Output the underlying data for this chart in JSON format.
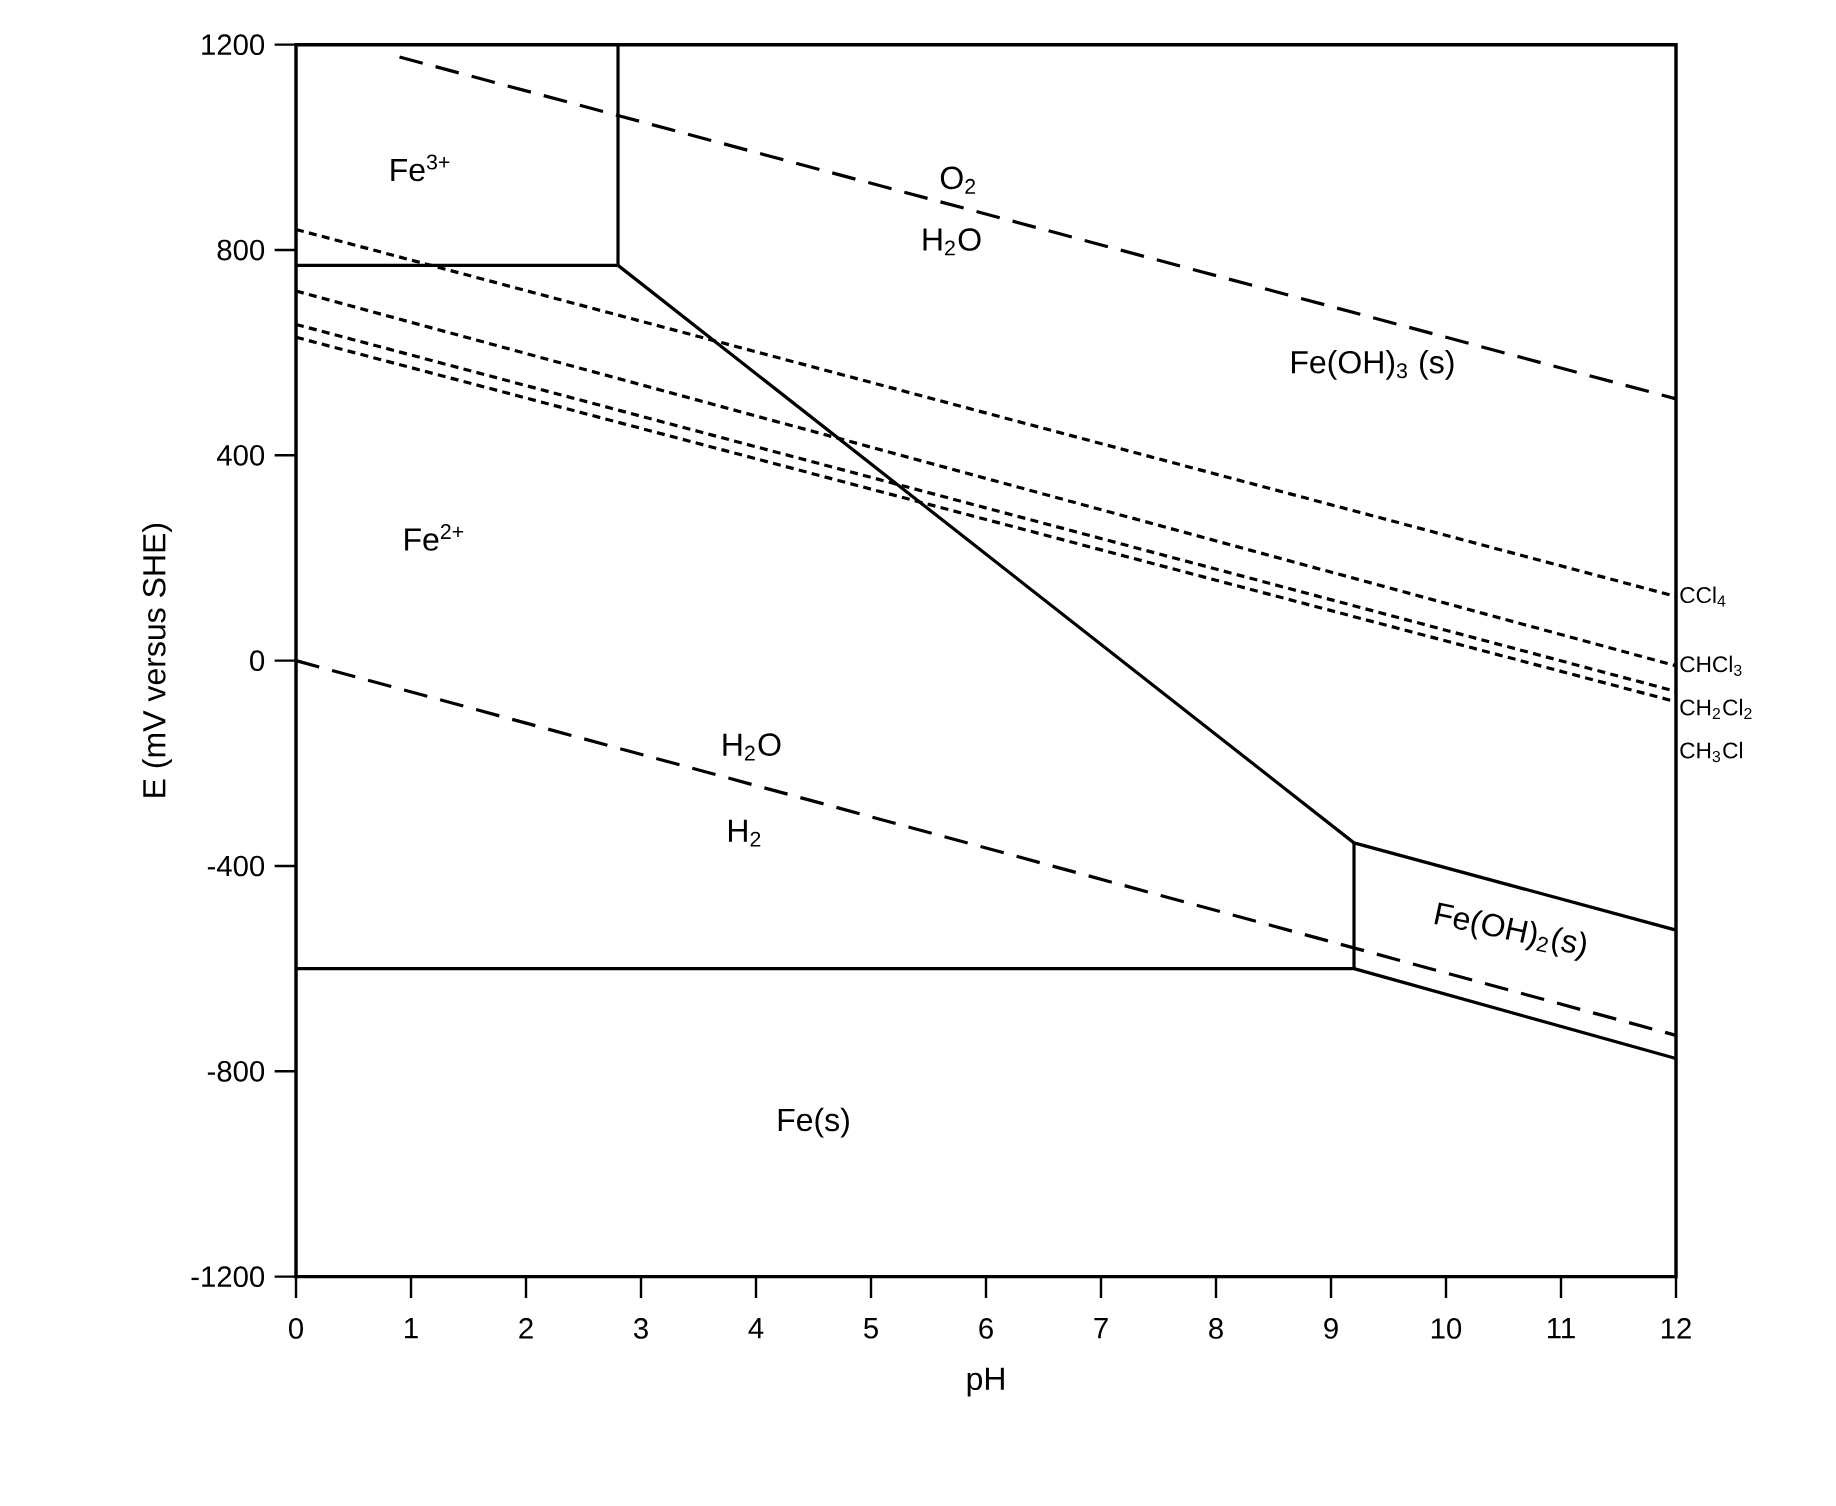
{
  "chart_data": {
    "type": "line",
    "xlabel": "pH",
    "ylabel": "E (mV versus SHE)",
    "xlim": [
      0,
      12
    ],
    "ylim": [
      -1200,
      1200
    ],
    "xticks": [
      0,
      1,
      2,
      3,
      4,
      5,
      6,
      7,
      8,
      9,
      10,
      11,
      12
    ],
    "yticks": [
      -1200,
      -800,
      -400,
      0,
      400,
      800,
      1200
    ],
    "grid": false,
    "legend": "right",
    "marker": "none",
    "series": [
      {
        "color": "#000000",
        "line_style": "dashed",
        "x": [
          0.9,
          12
        ],
        "values": [
          1176,
          510
        ]
      },
      {
        "color": "#000000",
        "line_style": "dashed",
        "x": [
          0,
          12
        ],
        "values": [
          0,
          -730
        ]
      },
      {
        "color": "#000000",
        "line_style": "solid",
        "x": [
          0,
          2.8,
          9.2,
          12
        ],
        "values": [
          770,
          770,
          -355,
          -525
        ]
      },
      {
        "color": "#000000",
        "line_style": "solid",
        "x": [
          2.8,
          2.8
        ],
        "values": [
          770,
          1200
        ]
      },
      {
        "color": "#000000",
        "line_style": "solid",
        "x": [
          0,
          9.2,
          12
        ],
        "values": [
          -600,
          -600,
          -775
        ]
      },
      {
        "color": "#000000",
        "line_style": "solid",
        "x": [
          9.2,
          9.2
        ],
        "values": [
          -600,
          -355
        ]
      },
      {
        "name": "CCl$_{4}$",
        "color": "#000000",
        "line_style": "dotted",
        "x": [
          0,
          12
        ],
        "values": [
          840,
          125
        ]
      },
      {
        "name": "CHCl$_{3}$",
        "color": "#000000",
        "line_style": "dotted",
        "x": [
          0,
          12
        ],
        "values": [
          720,
          -10
        ]
      },
      {
        "name": "CH$_{2}$Cl$_{2}$",
        "color": "#000000",
        "line_style": "dotted",
        "x": [
          0,
          12
        ],
        "values": [
          655,
          -60
        ]
      },
      {
        "name": "CH$_{3}$Cl",
        "color": "#000000",
        "line_style": "dotted",
        "x": [
          0,
          12
        ],
        "values": [
          630,
          -80
        ]
      }
    ],
    "annotations": [
      "Fe$^{3+}$",
      "Fe$^{2+}$",
      "Fe(OH)$_{3}$ (s)",
      "Fe(OH)$_{2}$(s)",
      "Fe(s)",
      "O$_{2}$",
      "H$_{2}$O",
      "H$_{2}$O",
      "H$_{2}$"
    ]
  }
}
